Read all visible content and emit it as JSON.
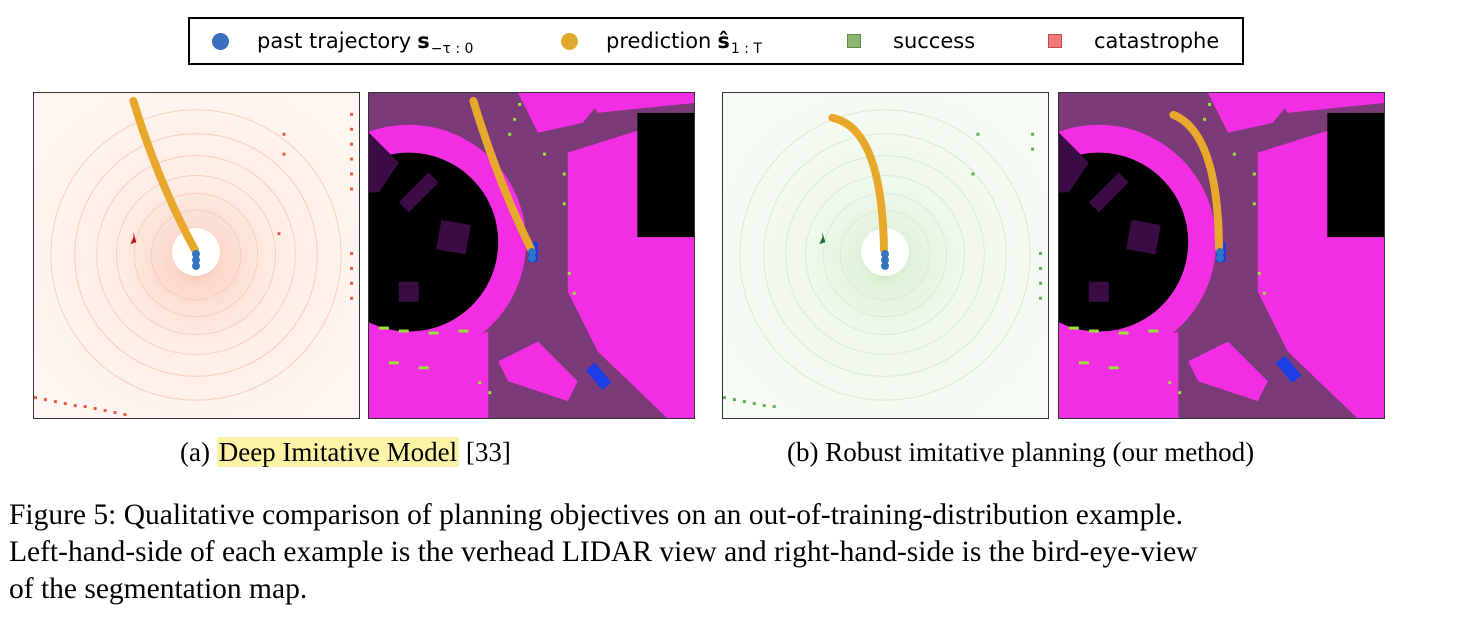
{
  "legend": {
    "items": [
      {
        "label": "past trajectory",
        "math": "s",
        "sub": "−τ : 0",
        "color": "#3a6fbf",
        "marker": "dot"
      },
      {
        "label": "prediction",
        "math": "ŝ",
        "sub": "1 : T",
        "color": "#e3a92f",
        "marker": "dot"
      },
      {
        "label": "success",
        "color": "#8fb573",
        "marker": "square"
      },
      {
        "label": "catastrophe",
        "color": "#f17b7b",
        "marker": "square"
      }
    ]
  },
  "subcaptions": {
    "a": {
      "prefix": "(a) ",
      "highlight": "Deep Imitative Model",
      "suffix": " [33]"
    },
    "b": {
      "text": "(b) Robust imitative planning (our method)"
    }
  },
  "caption": {
    "lines": [
      "Figure 5: Qualitative comparison of planning objectives on an out-of-training-distribution example.",
      "Left-hand-side of each example is the verhead LIDAR view and right-hand-side is the bird-eye-view",
      "of the segmentation map."
    ]
  },
  "colors": {
    "trajectory": "#e8a82b",
    "past": "#3474c4",
    "lidar_red": "#e8593f",
    "lidar_green": "#5fae5a",
    "seg_road": "#7a3b78",
    "seg_sidewalk": "#f22ee3",
    "seg_building": "#000000",
    "seg_dark": "#3b0b46",
    "seg_marking": "#9be33a",
    "seg_vehicle": "#1a3de6"
  }
}
